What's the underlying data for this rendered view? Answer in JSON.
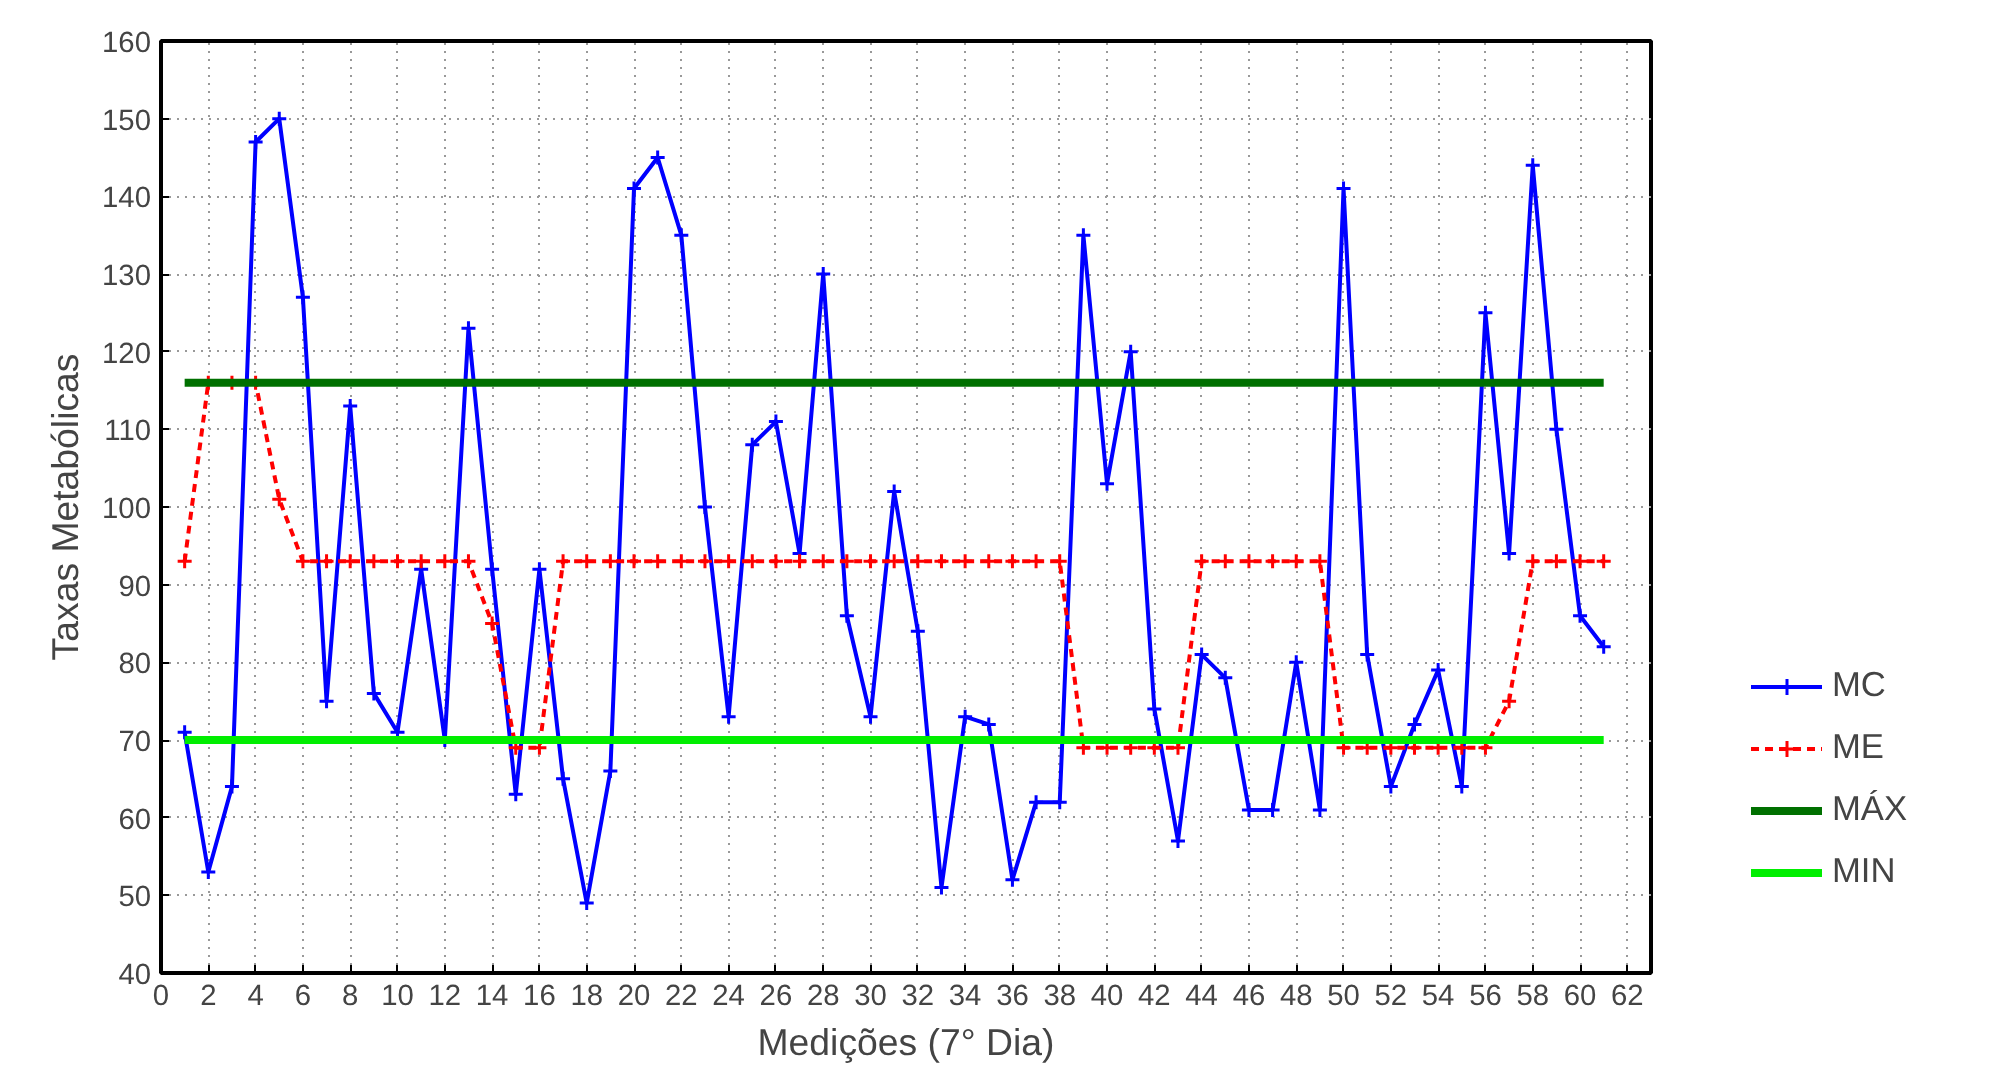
{
  "chart_data": {
    "type": "line",
    "xlabel": "Medições (7° Dia)",
    "ylabel": "Taxas Metabólicas",
    "xlim": [
      0,
      63
    ],
    "ylim": [
      40,
      160
    ],
    "xticks": [
      0,
      2,
      4,
      6,
      8,
      10,
      12,
      14,
      16,
      18,
      20,
      22,
      24,
      26,
      28,
      30,
      32,
      34,
      36,
      38,
      40,
      42,
      44,
      46,
      48,
      50,
      52,
      54,
      56,
      58,
      60,
      62
    ],
    "yticks": [
      40,
      50,
      60,
      70,
      80,
      90,
      100,
      110,
      120,
      130,
      140,
      150,
      160
    ],
    "grid": true,
    "legend": "right",
    "series": [
      {
        "name": "MC",
        "color": "#0000ff",
        "marker": "cross",
        "line_style": "solid",
        "x": [
          1,
          2,
          3,
          4,
          5,
          6,
          7,
          8,
          9,
          10,
          11,
          12,
          13,
          14,
          15,
          16,
          17,
          18,
          19,
          20,
          21,
          22,
          23,
          24,
          25,
          26,
          27,
          28,
          29,
          30,
          31,
          32,
          33,
          34,
          35,
          36,
          37,
          38,
          39,
          40,
          41,
          42,
          43,
          44,
          45,
          46,
          47,
          48,
          49,
          50,
          51,
          52,
          53,
          54,
          55,
          56,
          57,
          58,
          59,
          60,
          61
        ],
        "values": [
          71,
          53,
          64,
          147,
          150,
          127,
          75,
          113,
          76,
          71,
          92,
          70,
          123,
          92,
          63,
          92,
          65,
          49,
          66,
          141,
          145,
          135,
          100,
          73,
          108,
          111,
          94,
          130,
          86,
          73,
          102,
          84,
          51,
          73,
          72,
          52,
          62,
          62,
          135,
          103,
          120,
          74,
          57,
          81,
          78,
          61,
          61,
          80,
          61,
          141,
          81,
          64,
          72,
          79,
          64,
          125,
          94,
          144,
          110,
          86,
          82
        ]
      },
      {
        "name": "ME",
        "color": "#ff0000",
        "marker": "cross",
        "line_style": "dashed",
        "x": [
          1,
          2,
          3,
          4,
          5,
          6,
          7,
          8,
          9,
          10,
          11,
          12,
          13,
          14,
          15,
          16,
          17,
          18,
          19,
          20,
          21,
          22,
          23,
          24,
          25,
          26,
          27,
          28,
          29,
          30,
          31,
          32,
          33,
          34,
          35,
          36,
          37,
          38,
          39,
          40,
          41,
          42,
          43,
          44,
          45,
          46,
          47,
          48,
          49,
          50,
          51,
          52,
          53,
          54,
          55,
          56,
          57,
          58,
          59,
          60,
          61
        ],
        "values": [
          93,
          116,
          116,
          116,
          101,
          93,
          93,
          93,
          93,
          93,
          93,
          93,
          93,
          85,
          69,
          69,
          93,
          93,
          93,
          93,
          93,
          93,
          93,
          93,
          93,
          93,
          93,
          93,
          93,
          93,
          93,
          93,
          93,
          93,
          93,
          93,
          93,
          93,
          69,
          69,
          69,
          69,
          69,
          93,
          93,
          93,
          93,
          93,
          93,
          69,
          69,
          69,
          69,
          69,
          69,
          69,
          75,
          93,
          93,
          93,
          93
        ]
      },
      {
        "name": "MÁX",
        "color": "#007000",
        "marker": "none",
        "line_style": "solid",
        "x": [
          1,
          61
        ],
        "values": [
          116,
          116
        ]
      },
      {
        "name": "MIN",
        "color": "#00ee00",
        "marker": "none",
        "line_style": "solid",
        "x": [
          1,
          61
        ],
        "values": [
          70,
          70
        ]
      }
    ]
  }
}
